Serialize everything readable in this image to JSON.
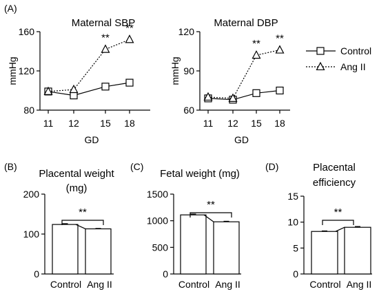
{
  "colors": {
    "ink": "#000000",
    "background": "#ffffff",
    "marker_fill": "#ffffff"
  },
  "legend": {
    "placement": "right",
    "entries": [
      {
        "label": "Control",
        "marker": "square",
        "line": "solid"
      },
      {
        "label": "Ang II",
        "marker": "triangle",
        "line": "dotted"
      }
    ]
  },
  "chart_data": [
    {
      "panel": "(A)",
      "type": "line",
      "title": "Maternal SBP",
      "xlabel": "GD",
      "ylabel": "mmHg",
      "categories": [
        "11",
        "12",
        "15",
        "18"
      ],
      "ylim": [
        80,
        160
      ],
      "yticks": [
        80,
        120,
        160
      ],
      "series": [
        {
          "name": "Control",
          "values": [
            99,
            95,
            104,
            108
          ]
        },
        {
          "name": "Ang II",
          "values": [
            99,
            101,
            142,
            152
          ]
        }
      ],
      "annotations": [
        {
          "text": "**",
          "category": "15"
        },
        {
          "text": "**",
          "category": "18"
        }
      ]
    },
    {
      "panel": "",
      "type": "line",
      "title": "Maternal DBP",
      "xlabel": "GD",
      "ylabel": "mmHg",
      "categories": [
        "11",
        "12",
        "15",
        "18"
      ],
      "ylim": [
        60,
        120
      ],
      "yticks": [
        60,
        90,
        120
      ],
      "series": [
        {
          "name": "Control",
          "values": [
            69,
            68,
            73,
            75
          ]
        },
        {
          "name": "Ang II",
          "values": [
            70,
            69,
            102,
            106
          ]
        }
      ],
      "annotations": [
        {
          "text": "**",
          "category": "15"
        },
        {
          "text": "**",
          "category": "18"
        }
      ]
    },
    {
      "panel": "(B)",
      "type": "bar",
      "title": "Placental weight",
      "subtitle": "(mg)",
      "categories": [
        "Control",
        "Ang II"
      ],
      "values": [
        124,
        113
      ],
      "errors": [
        2,
        1
      ],
      "ylim": [
        0,
        200
      ],
      "yticks": [
        0,
        100,
        200
      ],
      "annotations": [
        {
          "text": "**"
        }
      ]
    },
    {
      "panel": "(C)",
      "type": "bar",
      "title": "Fetal weight (mg)",
      "categories": [
        "Control",
        "Ang II"
      ],
      "values": [
        1110,
        980
      ],
      "errors": [
        15,
        10
      ],
      "ylim": [
        0,
        1500
      ],
      "yticks": [
        0,
        500,
        1000,
        1500
      ],
      "annotations": [
        {
          "text": "**"
        }
      ]
    },
    {
      "panel": "(D)",
      "type": "bar",
      "title": "Placental",
      "subtitle": "efficiency",
      "categories": [
        "Control",
        "Ang II"
      ],
      "values": [
        8.2,
        9.0
      ],
      "errors": [
        0.1,
        0.15
      ],
      "ylim": [
        0,
        15
      ],
      "yticks": [
        0,
        5,
        10,
        15
      ],
      "annotations": [
        {
          "text": "**"
        }
      ]
    }
  ]
}
